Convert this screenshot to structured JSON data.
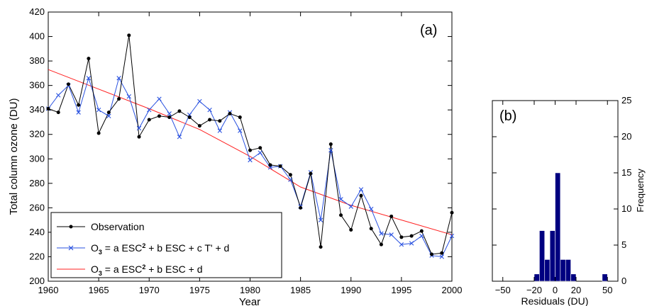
{
  "chart_data": [
    {
      "type": "line",
      "panel_label": "(a)",
      "xlabel": "Year",
      "ylabel": "Total column ozone (DU)",
      "xlim": [
        1960,
        2000
      ],
      "ylim": [
        200,
        420
      ],
      "xticks": [
        1960,
        1965,
        1970,
        1975,
        1980,
        1985,
        1990,
        1995,
        2000
      ],
      "yticks": [
        200,
        220,
        240,
        260,
        280,
        300,
        320,
        340,
        360,
        380,
        400,
        420
      ],
      "grid": false,
      "legend_position": "bottom-left",
      "series": [
        {
          "name": "Observation",
          "color": "#000000",
          "marker": "dot",
          "x": [
            1960,
            1961,
            1962,
            1963,
            1964,
            1965,
            1966,
            1967,
            1968,
            1969,
            1970,
            1971,
            1972,
            1973,
            1974,
            1975,
            1976,
            1977,
            1978,
            1979,
            1980,
            1981,
            1982,
            1983,
            1984,
            1985,
            1986,
            1987,
            1988,
            1989,
            1990,
            1991,
            1992,
            1993,
            1994,
            1995,
            1996,
            1997,
            1998,
            1999,
            2000
          ],
          "y": [
            341,
            338,
            361,
            344,
            382,
            321,
            338,
            349,
            401,
            318,
            332,
            335,
            334,
            339,
            334,
            327,
            332,
            331,
            337,
            334,
            307,
            309,
            295,
            294,
            287,
            260,
            288,
            228,
            312,
            254,
            242,
            270,
            243,
            230,
            253,
            236,
            237,
            241,
            222,
            223,
            256
          ]
        },
        {
          "name_parts": {
            "prefix": "O",
            "sub": "3",
            "a": " = a ESC",
            "sup": "2",
            "b": " + b ESC + c T' + d"
          },
          "color": "#2a52e0",
          "marker": "x",
          "x": [
            1960,
            1961,
            1962,
            1963,
            1964,
            1965,
            1966,
            1967,
            1968,
            1969,
            1970,
            1971,
            1972,
            1973,
            1974,
            1975,
            1976,
            1977,
            1978,
            1979,
            1980,
            1981,
            1982,
            1983,
            1984,
            1985,
            1986,
            1987,
            1988,
            1989,
            1990,
            1991,
            1992,
            1993,
            1994,
            1995,
            1996,
            1997,
            1998,
            1999,
            2000
          ],
          "y": [
            341,
            352,
            360,
            338,
            366,
            340,
            335,
            366,
            351,
            325,
            340,
            349,
            337,
            318,
            336,
            347,
            340,
            323,
            338,
            323,
            299,
            305,
            293,
            294,
            283,
            261,
            289,
            250,
            307,
            267,
            261,
            275,
            259,
            239,
            238,
            230,
            231,
            237,
            221,
            220,
            237
          ]
        },
        {
          "name_parts": {
            "prefix": "O",
            "sub": "3",
            "a": " = a ESC",
            "sup": "2",
            "b": " + b ESC + d"
          },
          "color": "#ff2020",
          "marker": "none",
          "x": [
            1960,
            1965,
            1970,
            1975,
            1980,
            1985,
            1990,
            1995,
            2000
          ],
          "y": [
            373,
            357,
            341,
            324,
            302,
            277,
            262,
            250,
            238
          ]
        }
      ]
    },
    {
      "type": "bar",
      "subtype": "histogram",
      "panel_label": "(b)",
      "xlabel": "Residuals (DU)",
      "ylabel": "Frequency",
      "xlim": [
        -60,
        60
      ],
      "ylim": [
        0,
        25
      ],
      "xticks": [
        -50,
        -20,
        0,
        20,
        50
      ],
      "yticks": [
        0,
        5,
        10,
        15,
        20,
        25
      ],
      "color": "#000080",
      "bins": [
        {
          "from": -20,
          "to": -15,
          "count": 1
        },
        {
          "from": -15,
          "to": -10,
          "count": 7
        },
        {
          "from": -10,
          "to": -5,
          "count": 3
        },
        {
          "from": -5,
          "to": 0,
          "count": 7
        },
        {
          "from": 0,
          "to": 5,
          "count": 15
        },
        {
          "from": 5,
          "to": 10,
          "count": 3
        },
        {
          "from": 10,
          "to": 15,
          "count": 3
        },
        {
          "from": 15,
          "to": 20,
          "count": 1
        },
        {
          "from": 45,
          "to": 50,
          "count": 1
        }
      ]
    }
  ]
}
